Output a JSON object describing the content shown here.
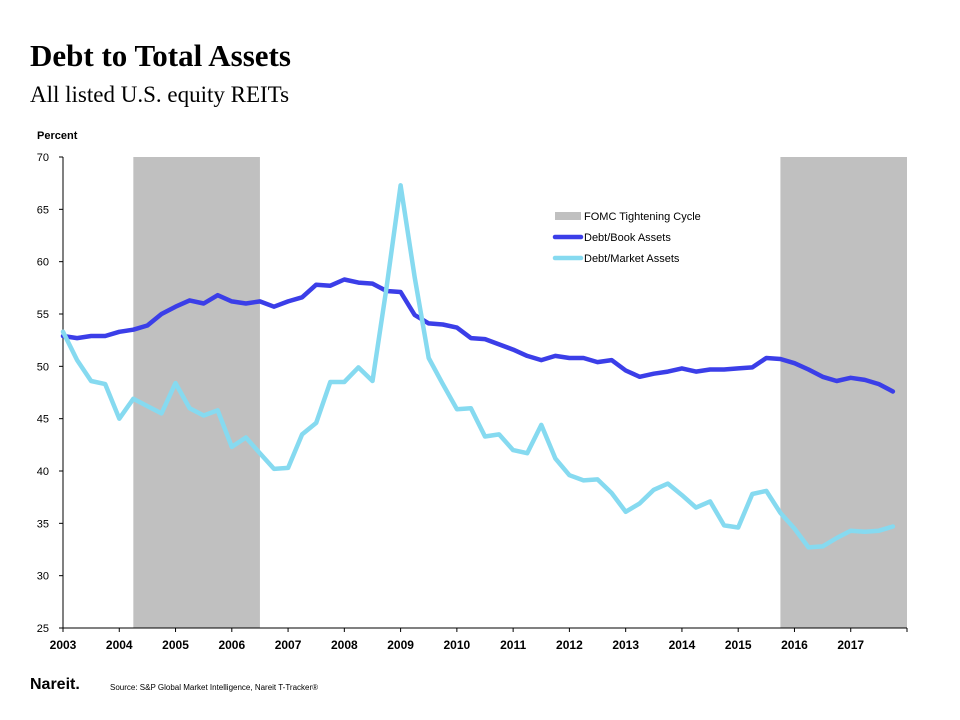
{
  "header": {
    "title": "Debt to Total Assets",
    "subtitle": "All listed U.S. equity REITs"
  },
  "footer": {
    "logo": "Nareit.",
    "source": "Source: S&P Global Market Intelligence, Nareit T-Tracker®"
  },
  "colors": {
    "book": "#3b3ee8",
    "market": "#86daf0",
    "shade": "#c0c0c0",
    "axis": "#000000"
  },
  "chart_data": {
    "type": "line",
    "title": "Debt to Total Assets",
    "ylabel": "Percent",
    "xlabel": "",
    "ylim": [
      25,
      70
    ],
    "xlim": [
      2003,
      2018
    ],
    "y_ticks": [
      25,
      30,
      35,
      40,
      45,
      50,
      55,
      60,
      65,
      70
    ],
    "x_tick_labels": [
      "2003",
      "2004",
      "2005",
      "2006",
      "2007",
      "2008",
      "2009",
      "2010",
      "2011",
      "2012",
      "2013",
      "2014",
      "2015",
      "2016",
      "2017"
    ],
    "grid": false,
    "legend_position": "top-right",
    "legend": [
      "FOMC Tightening Cycle",
      "Debt/Book Assets",
      "Debt/Market Assets"
    ],
    "shaded_periods": [
      {
        "name": "FOMC Tightening Cycle",
        "start": 2004.25,
        "end": 2006.5
      },
      {
        "name": "FOMC Tightening Cycle",
        "start": 2015.75,
        "end": 2018.0
      }
    ],
    "series": [
      {
        "name": "Debt/Book Assets",
        "x": [
          2003.0,
          2003.25,
          2003.5,
          2003.75,
          2004.0,
          2004.25,
          2004.5,
          2004.75,
          2005.0,
          2005.25,
          2005.5,
          2005.75,
          2006.0,
          2006.25,
          2006.5,
          2006.75,
          2007.0,
          2007.25,
          2007.5,
          2007.75,
          2008.0,
          2008.25,
          2008.5,
          2008.75,
          2009.0,
          2009.25,
          2009.5,
          2009.75,
          2010.0,
          2010.25,
          2010.5,
          2010.75,
          2011.0,
          2011.25,
          2011.5,
          2011.75,
          2012.0,
          2012.25,
          2012.5,
          2012.75,
          2013.0,
          2013.25,
          2013.5,
          2013.75,
          2014.0,
          2014.25,
          2014.5,
          2014.75,
          2015.0,
          2015.25,
          2015.5,
          2015.75,
          2016.0,
          2016.25,
          2016.5,
          2016.75,
          2017.0,
          2017.25,
          2017.5,
          2017.75
        ],
        "values": [
          52.9,
          52.7,
          52.9,
          52.9,
          53.3,
          53.5,
          53.9,
          55.0,
          55.7,
          56.3,
          56.0,
          56.8,
          56.2,
          56.0,
          56.2,
          55.7,
          56.2,
          56.6,
          57.8,
          57.7,
          58.3,
          58.0,
          57.9,
          57.2,
          57.1,
          54.9,
          54.1,
          54.0,
          53.7,
          52.7,
          52.6,
          52.1,
          51.6,
          51.0,
          50.6,
          51.0,
          50.8,
          50.8,
          50.4,
          50.6,
          49.6,
          49.0,
          49.3,
          49.5,
          49.8,
          49.5,
          49.7,
          49.7,
          49.8,
          49.9,
          50.8,
          50.7,
          50.3,
          49.7,
          49.0,
          48.6,
          48.9,
          48.7,
          48.3,
          47.6
        ]
      },
      {
        "name": "Debt/Market Assets",
        "x": [
          2003.0,
          2003.25,
          2003.5,
          2003.75,
          2004.0,
          2004.25,
          2004.5,
          2004.75,
          2005.0,
          2005.25,
          2005.5,
          2005.75,
          2006.0,
          2006.25,
          2006.5,
          2006.75,
          2007.0,
          2007.25,
          2007.5,
          2007.75,
          2008.0,
          2008.25,
          2008.5,
          2008.75,
          2009.0,
          2009.25,
          2009.5,
          2009.75,
          2010.0,
          2010.25,
          2010.5,
          2010.75,
          2011.0,
          2011.25,
          2011.5,
          2011.75,
          2012.0,
          2012.25,
          2012.5,
          2012.75,
          2013.0,
          2013.25,
          2013.5,
          2013.75,
          2014.0,
          2014.25,
          2014.5,
          2014.75,
          2015.0,
          2015.25,
          2015.5,
          2015.75,
          2016.0,
          2016.25,
          2016.5,
          2016.75,
          2017.0,
          2017.25,
          2017.5,
          2017.75
        ],
        "values": [
          53.3,
          50.6,
          48.6,
          48.3,
          45.0,
          46.9,
          46.2,
          45.5,
          48.4,
          46.0,
          45.3,
          45.8,
          42.3,
          43.2,
          41.7,
          40.2,
          40.3,
          43.5,
          44.6,
          48.5,
          48.5,
          49.9,
          48.6,
          57.5,
          67.3,
          58.5,
          50.8,
          48.3,
          45.9,
          46.0,
          43.3,
          43.5,
          42.0,
          41.7,
          44.4,
          41.2,
          39.6,
          39.1,
          39.2,
          37.9,
          36.1,
          36.9,
          38.2,
          38.8,
          37.7,
          36.5,
          37.1,
          34.8,
          34.6,
          37.8,
          38.1,
          36.0,
          34.5,
          32.7,
          32.8,
          33.6,
          34.3,
          34.2,
          34.3,
          34.7
        ]
      }
    ]
  }
}
